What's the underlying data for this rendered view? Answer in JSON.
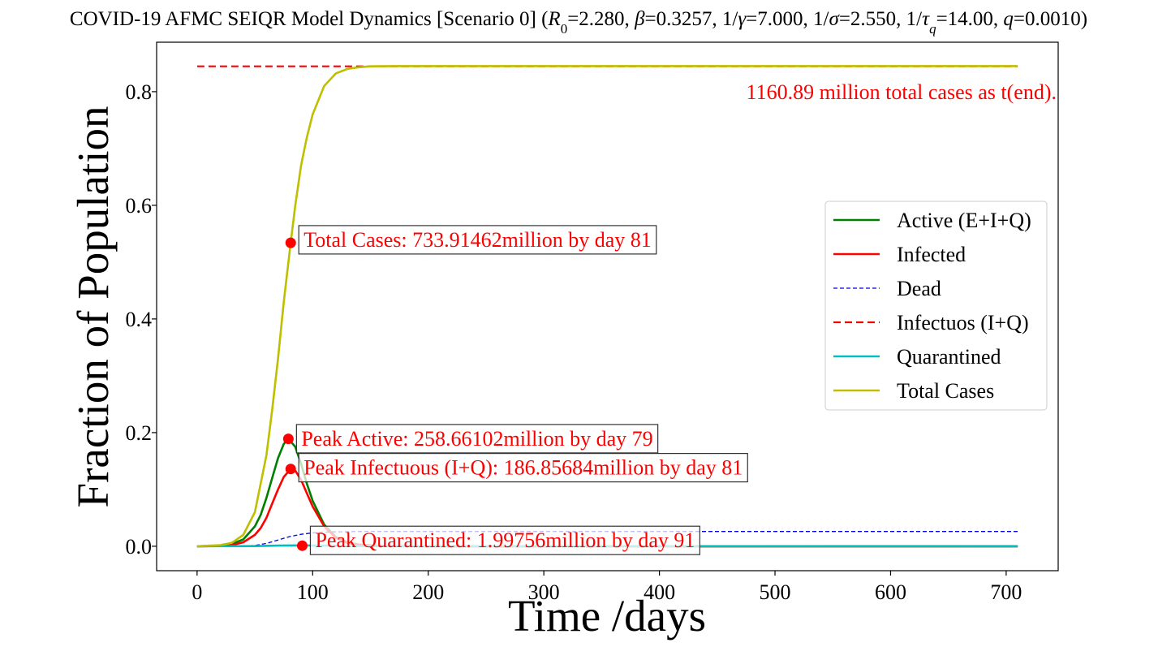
{
  "chart_data": {
    "type": "line",
    "title": "COVID-19 AFMC SEIQR Model Dynamics [Scenario 0] (R0=2.280, β=0.3257, 1/γ=7.000, 1/σ=2.550, 1/τq=14.00, q=0.0010)",
    "title_parts": {
      "prefix": "COVID-19 AFMC SEIQR Model Dynamics [Scenario 0] (",
      "r0_sym": "R",
      "r0_sub": "0",
      "r0_val": "=2.280, ",
      "beta_sym": "β",
      "beta_val": "=0.3257, 1/",
      "gamma_sym": "γ",
      "gamma_val": "=7.000, 1/",
      "sigma_sym": "σ",
      "sigma_val": "=2.550, 1/",
      "tau_sym": "τ",
      "tau_sub": "q",
      "tau_val": "=14.00, ",
      "q_sym": "q",
      "q_val": "=0.0010)"
    },
    "xlabel": "Time /days",
    "ylabel": "Fraction of Population",
    "xlim": [
      -35,
      745
    ],
    "ylim": [
      -0.043,
      0.887
    ],
    "xticks": [
      0,
      100,
      200,
      300,
      400,
      500,
      600,
      700
    ],
    "xtick_labels": [
      "0",
      "100",
      "200",
      "300",
      "400",
      "500",
      "600",
      "700"
    ],
    "yticks": [
      0.0,
      0.2,
      0.4,
      0.6,
      0.8
    ],
    "ytick_labels": [
      "0.0",
      "0.2",
      "0.4",
      "0.6",
      "0.8"
    ],
    "grid": false,
    "legend_position": "center-right",
    "series": [
      {
        "name": "Active (E+I+Q)",
        "color": "#008000",
        "style": "solid",
        "x": [
          0,
          20,
          30,
          40,
          50,
          55,
          60,
          65,
          70,
          75,
          79,
          85,
          90,
          95,
          100,
          110,
          120,
          130,
          140,
          160,
          200,
          400,
          710
        ],
        "y": [
          0,
          0.001,
          0.004,
          0.012,
          0.035,
          0.055,
          0.085,
          0.12,
          0.155,
          0.18,
          0.189,
          0.175,
          0.145,
          0.11,
          0.08,
          0.038,
          0.016,
          0.007,
          0.003,
          0.0005,
          0,
          0,
          0
        ]
      },
      {
        "name": "Infected",
        "color": "#ff0000",
        "style": "solid",
        "x": [
          0,
          20,
          30,
          40,
          50,
          55,
          60,
          65,
          70,
          75,
          81,
          85,
          90,
          95,
          100,
          110,
          120,
          130,
          140,
          160,
          200,
          400,
          710
        ],
        "y": [
          0,
          0.0005,
          0.002,
          0.007,
          0.02,
          0.032,
          0.05,
          0.075,
          0.1,
          0.122,
          0.136,
          0.133,
          0.117,
          0.093,
          0.07,
          0.035,
          0.015,
          0.006,
          0.0025,
          0.0004,
          0,
          0,
          0
        ]
      },
      {
        "name": "Dead",
        "color": "#0000ff",
        "style": "dashed-thin",
        "x": [
          0,
          40,
          50,
          60,
          70,
          80,
          90,
          100,
          110,
          120,
          140,
          710
        ],
        "y": [
          0,
          0.0003,
          0.0015,
          0.005,
          0.011,
          0.017,
          0.021,
          0.0235,
          0.025,
          0.0255,
          0.026,
          0.026
        ]
      },
      {
        "name": "Infectuos (I+Q)",
        "color": "#ff0000",
        "style": "dashed",
        "x": [
          0,
          710
        ],
        "y": [
          0.8445,
          0.8445
        ]
      },
      {
        "name": "Quarantined",
        "color": "#00bfbf",
        "style": "solid",
        "x": [
          0,
          50,
          70,
          91,
          110,
          130,
          160,
          710
        ],
        "y": [
          0,
          0.0003,
          0.0012,
          0.0016,
          0.0012,
          0.0006,
          0.0002,
          0
        ]
      },
      {
        "name": "Total Cases",
        "color": "#bfbf00",
        "style": "solid",
        "x": [
          0,
          20,
          30,
          40,
          50,
          60,
          65,
          70,
          75,
          81,
          85,
          90,
          95,
          100,
          110,
          120,
          130,
          140,
          150,
          170,
          710
        ],
        "y": [
          0,
          0.002,
          0.006,
          0.02,
          0.06,
          0.16,
          0.24,
          0.33,
          0.43,
          0.534,
          0.6,
          0.67,
          0.72,
          0.76,
          0.81,
          0.832,
          0.84,
          0.843,
          0.8445,
          0.845,
          0.845
        ]
      }
    ],
    "markers": [
      {
        "x": 79,
        "y": 0.189,
        "color": "#ff0000"
      },
      {
        "x": 81,
        "y": 0.136,
        "color": "#ff0000"
      },
      {
        "x": 81,
        "y": 0.534,
        "color": "#ff0000"
      },
      {
        "x": 91,
        "y": 0.001,
        "color": "#ff0000"
      }
    ],
    "annotations": [
      {
        "text": "Total Cases: 733.91462million by day 81",
        "x": 88,
        "y": 0.54,
        "boxed": true
      },
      {
        "text": "Peak Active: 258.66102million by day 79",
        "x": 86,
        "y": 0.19,
        "boxed": true
      },
      {
        "text": "Peak Infectuous (I+Q): 186.85684million by day 81",
        "x": 88,
        "y": 0.139,
        "boxed": true
      },
      {
        "text": "Peak Quarantined: 1.99756million by day 91",
        "x": 98,
        "y": 0.011,
        "boxed": true
      },
      {
        "text": "1160.89 million total cases as t(end).",
        "x": 744,
        "y": 0.8,
        "boxed": false,
        "align": "end"
      }
    ]
  }
}
